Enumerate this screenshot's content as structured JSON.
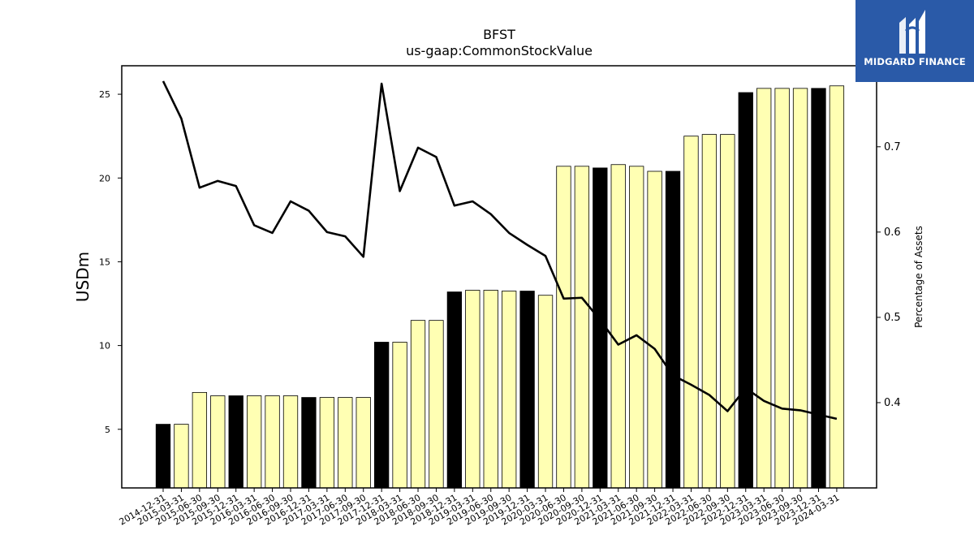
{
  "chart_data": {
    "type": "bar",
    "title": "BFST",
    "subtitle": "us-gaap:CommonStockValue",
    "ylabel": "USDm",
    "y2label": "Percentage of Assets",
    "ylim": [
      1.5,
      26.7
    ],
    "y2lim": [
      0.3,
      0.795
    ],
    "yticks": [
      5,
      10,
      15,
      20,
      25
    ],
    "y2ticks": [
      0.4,
      0.5,
      0.6,
      0.7
    ],
    "categories": [
      "2014-12-31",
      "2015-03-31",
      "2015-06-30",
      "2015-09-30",
      "2015-12-31",
      "2016-03-31",
      "2016-06-30",
      "2016-09-30",
      "2016-12-31",
      "2017-03-31",
      "2017-06-30",
      "2017-09-30",
      "2017-12-31",
      "2018-03-31",
      "2018-06-30",
      "2018-09-30",
      "2018-12-31",
      "2019-03-31",
      "2019-06-30",
      "2019-09-30",
      "2019-12-31",
      "2020-03-31",
      "2020-06-30",
      "2020-09-30",
      "2020-12-31",
      "2021-03-31",
      "2021-06-30",
      "2021-09-30",
      "2021-12-31",
      "2022-03-31",
      "2022-06-30",
      "2022-09-30",
      "2022-12-31",
      "2023-03-31",
      "2023-06-30",
      "2023-09-30",
      "2023-12-31",
      "2024-03-31"
    ],
    "series": [
      {
        "type": "bar",
        "axis": "left",
        "values": [
          5.3,
          5.3,
          7.2,
          7.0,
          7.0,
          7.0,
          7.0,
          7.0,
          6.9,
          6.9,
          6.9,
          6.9,
          10.2,
          10.2,
          11.5,
          11.5,
          13.2,
          13.3,
          13.3,
          13.25,
          13.25,
          13.0,
          20.7,
          20.7,
          20.6,
          20.8,
          20.7,
          20.4,
          20.4,
          22.5,
          22.6,
          22.6,
          25.1,
          25.35,
          25.35,
          25.35,
          25.35,
          25.5
        ],
        "highlight": [
          0,
          4,
          8,
          12,
          16,
          20,
          24,
          28,
          32,
          36
        ],
        "colors": {
          "default": "#ffffb3",
          "highlight": "#000000",
          "edge": "#000000"
        }
      },
      {
        "type": "line",
        "axis": "right",
        "values": [
          0.777,
          0.733,
          0.652,
          0.66,
          0.654,
          0.608,
          0.599,
          0.636,
          0.625,
          0.6,
          0.595,
          0.571,
          0.774,
          0.648,
          0.699,
          0.688,
          0.631,
          0.636,
          0.621,
          0.599,
          0.585,
          0.572,
          0.522,
          0.523,
          0.497,
          0.468,
          0.479,
          0.463,
          0.432,
          0.421,
          0.409,
          0.39,
          0.417,
          0.402,
          0.393,
          0.391,
          0.386,
          0.381
        ],
        "color": "#000000"
      }
    ],
    "grid": false
  },
  "logo": {
    "text": "MIDGARD FINANCE"
  }
}
